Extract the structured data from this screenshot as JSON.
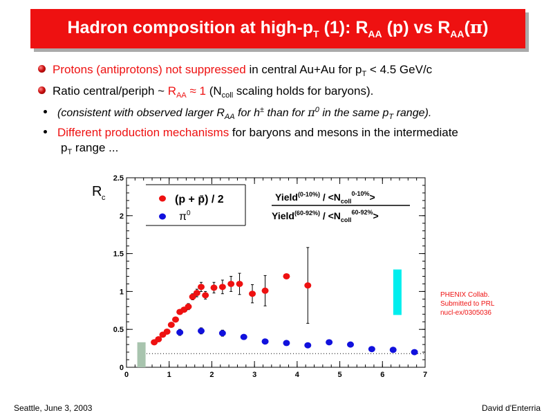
{
  "title": {
    "part1": "Hadron composition at high-p",
    "sub1": "T",
    "part2": " (1): R",
    "sub2": "AA",
    "part3": " (p) vs R",
    "sub3": "AA",
    "part4": "(",
    "pi": "π",
    "part5": ")"
  },
  "bullets": {
    "b1": {
      "red": "Protons (antiprotons) not suppressed",
      "rest": " in central Au+Au for p",
      "sub": "T",
      "tail": " < 4.5 GeV/c"
    },
    "b2": {
      "a": "Ratio central/periph ~ ",
      "red": "R",
      "redsub": "AA",
      "red2": " ≈ 1",
      "b": " (N",
      "sub": "coll",
      "c": " scaling holds for baryons)."
    },
    "b3": {
      "a": "(consistent with observed larger R",
      "sub1": "AA",
      "b": " for h",
      "sup1": "±",
      "c": " than for ",
      "pi": "π",
      "sup2": "0",
      "d": " in the same p",
      "sub2": "T",
      "e": " range)."
    },
    "b4": {
      "red": "Different production mechanisms",
      "rest": " for baryons and mesons in the intermediate",
      "line2": "p",
      "sub": "T",
      "line2b": " range ..."
    }
  },
  "footer": {
    "left": "Seattle, June  3, 2003",
    "right": "David d'Enterria"
  },
  "colors": {
    "title_bg": "#ee1111",
    "accent_red": "#ee1111",
    "proton": "#ee1111",
    "pion": "#1111dd",
    "sys_gray": "#a8c4ae",
    "sys_cyan": "#00eeee"
  },
  "chart_data": {
    "type": "scatter",
    "ylabel": "R",
    "ylabel_sub": "c",
    "xlim": [
      0,
      7
    ],
    "ylim": [
      0,
      2.5
    ],
    "xticks": [
      "0",
      "1",
      "2",
      "3",
      "4",
      "5",
      "6",
      "7"
    ],
    "yticks": [
      "0",
      "0.5",
      "1",
      "1.5",
      "2",
      "2.5"
    ],
    "legend_loc": "top-left",
    "legend": [
      {
        "label": "(p + p̄) / 2",
        "color": "#ee1111"
      },
      {
        "label": "π0",
        "color": "#1111dd"
      }
    ],
    "formula": {
      "num_a": "Yield",
      "num_sup": "(0-10%)",
      "num_b": " / <N",
      "num_sub": "coll",
      "num_sup2": "0-10%",
      "num_c": ">",
      "den_a": "Yield",
      "den_sup": "(60-92%)",
      "den_b": " / <N",
      "den_sub": "coll",
      "den_sup2": "60-92%",
      "den_c": ">"
    },
    "annotation": [
      "PHENIX Collab.",
      "Submitted to PRL",
      "nucl-ex/0305036"
    ],
    "reference_line_y": 0.18,
    "series": [
      {
        "name": "(p + p̄) / 2",
        "color": "#ee1111",
        "x": [
          0.65,
          0.75,
          0.85,
          0.95,
          1.05,
          1.15,
          1.25,
          1.35,
          1.45,
          1.55,
          1.65,
          1.75,
          1.85,
          2.05,
          2.25,
          2.45,
          2.65,
          2.95,
          3.25,
          3.75,
          4.25
        ],
        "y": [
          0.33,
          0.37,
          0.43,
          0.47,
          0.56,
          0.63,
          0.73,
          0.76,
          0.8,
          0.93,
          0.98,
          1.06,
          0.95,
          1.05,
          1.06,
          1.1,
          1.1,
          0.97,
          1.01,
          1.2,
          1.08
        ],
        "err": [
          0.02,
          0.02,
          0.02,
          0.02,
          0.03,
          0.03,
          0.03,
          0.03,
          0.04,
          0.04,
          0.05,
          0.06,
          0.05,
          0.07,
          0.09,
          0.1,
          0.14,
          0.12,
          0.2,
          0.02,
          0.5
        ]
      },
      {
        "name": "π0",
        "color": "#1111dd",
        "x": [
          1.25,
          1.75,
          2.25,
          2.75,
          3.25,
          3.75,
          4.25,
          4.75,
          5.25,
          5.75,
          6.25,
          6.75
        ],
        "y": [
          0.46,
          0.48,
          0.45,
          0.4,
          0.34,
          0.32,
          0.29,
          0.33,
          0.3,
          0.24,
          0.23,
          0.2
        ],
        "err": [
          0.04,
          0.04,
          0.04,
          0.03,
          0.03,
          0.03,
          0.03,
          0.03,
          0.03,
          0.02,
          0.02,
          0.02
        ]
      }
    ],
    "systematic_bands": [
      {
        "x": 0.35,
        "ylow": 0.0,
        "yhigh": 0.33,
        "color": "#a8c4ae"
      },
      {
        "x": 6.35,
        "ylow": 0.69,
        "yhigh": 1.29,
        "color": "#00eeee"
      }
    ]
  }
}
